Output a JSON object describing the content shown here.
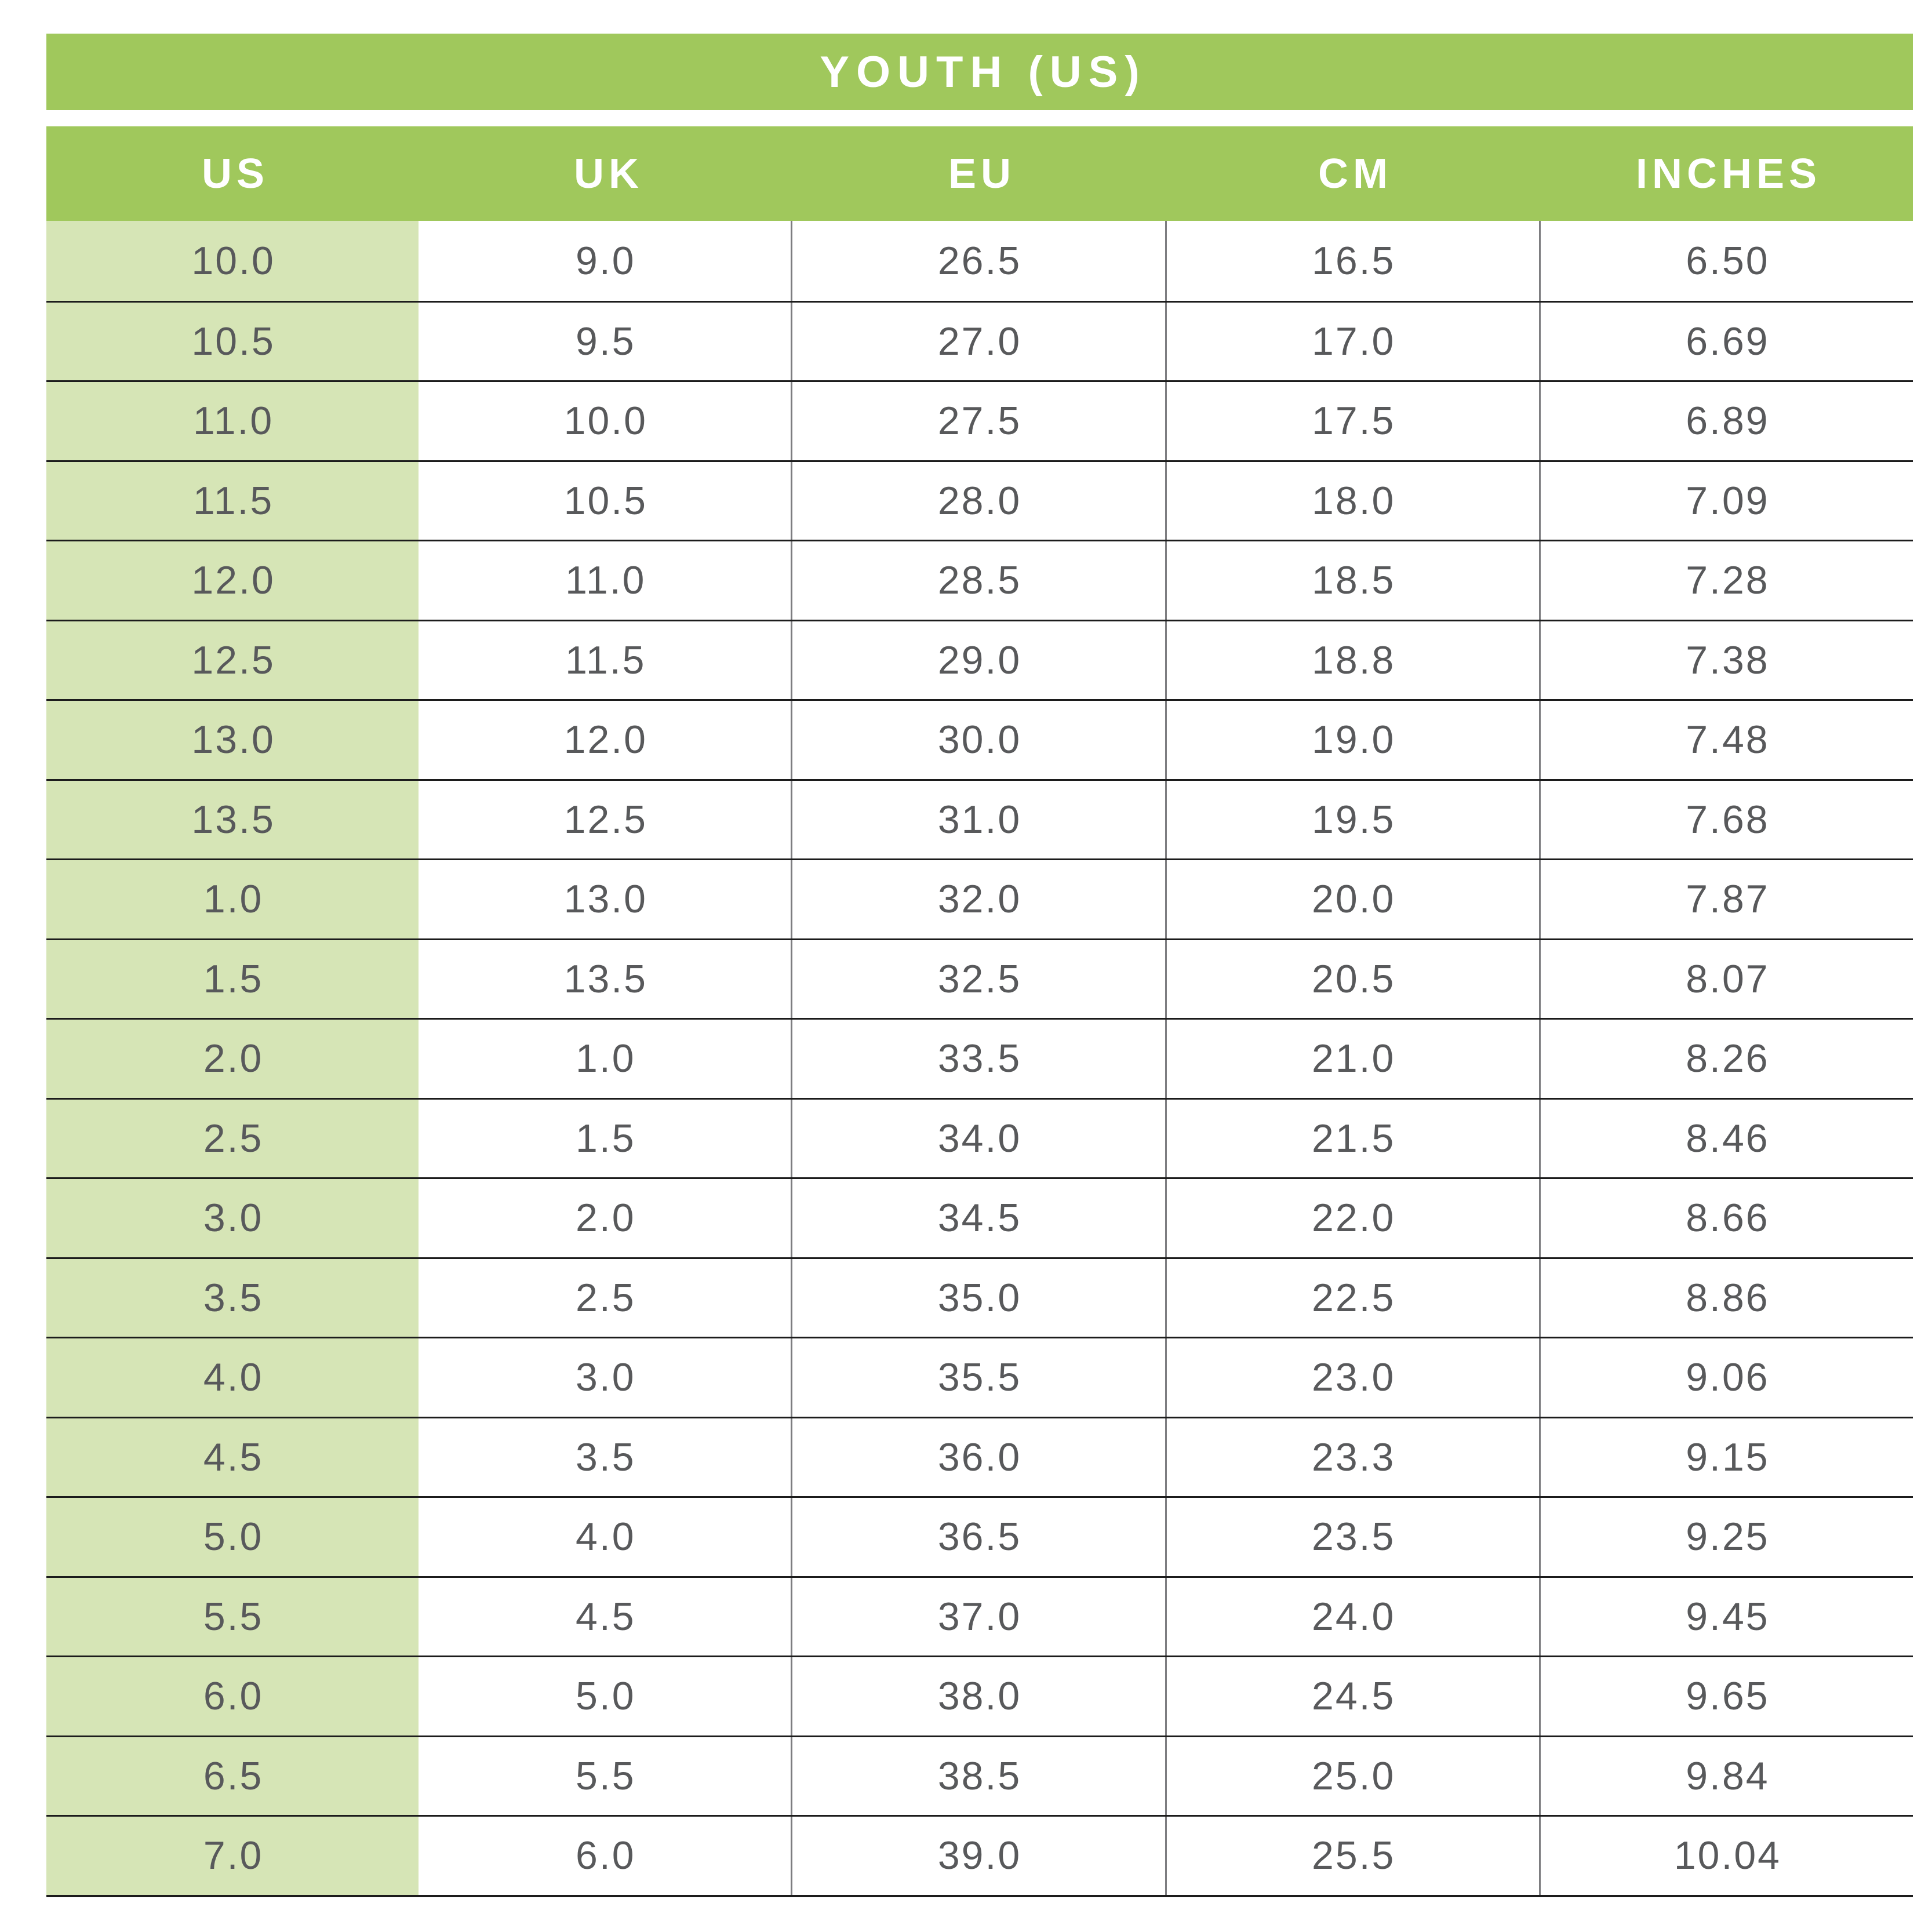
{
  "title": "YOUTH (US)",
  "table": {
    "columns": [
      "US",
      "UK",
      "EU",
      "CM",
      "INCHES"
    ],
    "rows": [
      [
        "10.0",
        "9.0",
        "26.5",
        "16.5",
        "6.50"
      ],
      [
        "10.5",
        "9.5",
        "27.0",
        "17.0",
        "6.69"
      ],
      [
        "11.0",
        "10.0",
        "27.5",
        "17.5",
        "6.89"
      ],
      [
        "11.5",
        "10.5",
        "28.0",
        "18.0",
        "7.09"
      ],
      [
        "12.0",
        "11.0",
        "28.5",
        "18.5",
        "7.28"
      ],
      [
        "12.5",
        "11.5",
        "29.0",
        "18.8",
        "7.38"
      ],
      [
        "13.0",
        "12.0",
        "30.0",
        "19.0",
        "7.48"
      ],
      [
        "13.5",
        "12.5",
        "31.0",
        "19.5",
        "7.68"
      ],
      [
        "1.0",
        "13.0",
        "32.0",
        "20.0",
        "7.87"
      ],
      [
        "1.5",
        "13.5",
        "32.5",
        "20.5",
        "8.07"
      ],
      [
        "2.0",
        "1.0",
        "33.5",
        "21.0",
        "8.26"
      ],
      [
        "2.5",
        "1.5",
        "34.0",
        "21.5",
        "8.46"
      ],
      [
        "3.0",
        "2.0",
        "34.5",
        "22.0",
        "8.66"
      ],
      [
        "3.5",
        "2.5",
        "35.0",
        "22.5",
        "8.86"
      ],
      [
        "4.0",
        "3.0",
        "35.5",
        "23.0",
        "9.06"
      ],
      [
        "4.5",
        "3.5",
        "36.0",
        "23.3",
        "9.15"
      ],
      [
        "5.0",
        "4.0",
        "36.5",
        "23.5",
        "9.25"
      ],
      [
        "5.5",
        "4.5",
        "37.0",
        "24.0",
        "9.45"
      ],
      [
        "6.0",
        "5.0",
        "38.0",
        "24.5",
        "9.65"
      ],
      [
        "6.5",
        "5.5",
        "38.5",
        "25.0",
        "9.84"
      ],
      [
        "7.0",
        "6.0",
        "39.0",
        "25.5",
        "10.04"
      ]
    ]
  },
  "colors": {
    "green": "#A0C85C",
    "light_green": "#D6E5B6",
    "header_text": "#FFFFFF",
    "text": "#58595B",
    "row_line": "#1C1C1C",
    "col_line": "#7D7D80"
  }
}
